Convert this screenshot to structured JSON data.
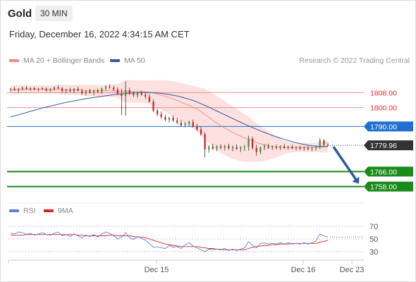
{
  "header": {
    "symbol": "Gold",
    "timeframe": "30 MIN"
  },
  "timestamp": "Friday, December 16, 2022 4:34:15 AM CET",
  "legend": {
    "ma20": {
      "label": "MA 20 + Bollinger Bands",
      "color": "#f08a8a"
    },
    "ma50": {
      "label": "MA 50",
      "color": "#2f5a9a"
    },
    "credit": "Research © 2022 Trading Central"
  },
  "indicator_legend": {
    "rsi": {
      "label": "RSI",
      "color": "#5b7fd6"
    },
    "rsi_ma": {
      "label": "9MA",
      "color": "#e02020"
    }
  },
  "chart_data": {
    "type": "candlestick",
    "y_range": [
      1750,
      1822
    ],
    "price_lines": [
      {
        "value": 1808.0,
        "label": "1808.00",
        "style": "resistance",
        "color": "#f28b8b"
      },
      {
        "value": 1800.0,
        "label": "1800.00",
        "style": "resistance",
        "color": "#f28b8b"
      },
      {
        "value": 1790.0,
        "label": "1790.00",
        "style": "pivot",
        "color": "#1f6fd0"
      },
      {
        "value": 1766.0,
        "label": "1766.00",
        "style": "support",
        "color": "#1a8a1a"
      },
      {
        "value": 1758.0,
        "label": "1758.00",
        "style": "support",
        "color": "#1a8a1a"
      }
    ],
    "last_price": {
      "value": 1779.96,
      "label": "1779.96"
    },
    "forecast": {
      "direction": "down",
      "target": 1758.0
    },
    "x_labels": [
      "Dec 15",
      "Dec 16",
      "Dec 23"
    ],
    "series": [
      {
        "name": "MA 20 + Bollinger Bands",
        "color": "#f08a8a"
      },
      {
        "name": "MA 50",
        "color": "#2f5a9a"
      }
    ],
    "candles": [
      [
        1809.5,
        1810.5,
        1808.5,
        1810.0
      ],
      [
        1810.0,
        1811.0,
        1809.0,
        1809.2
      ],
      [
        1809.2,
        1810.4,
        1808.0,
        1810.0
      ],
      [
        1810.0,
        1811.2,
        1809.0,
        1810.6
      ],
      [
        1810.6,
        1811.4,
        1809.6,
        1809.8
      ],
      [
        1809.8,
        1810.8,
        1808.8,
        1810.4
      ],
      [
        1810.4,
        1811.0,
        1809.2,
        1809.6
      ],
      [
        1809.6,
        1810.6,
        1808.6,
        1810.2
      ],
      [
        1810.2,
        1811.0,
        1809.4,
        1810.0
      ],
      [
        1810.0,
        1810.8,
        1808.6,
        1809.0
      ],
      [
        1809.0,
        1810.4,
        1808.4,
        1809.8
      ],
      [
        1809.8,
        1811.2,
        1809.0,
        1810.8
      ],
      [
        1810.8,
        1812.0,
        1809.8,
        1810.2
      ],
      [
        1810.2,
        1811.0,
        1808.0,
        1808.8
      ],
      [
        1808.8,
        1810.0,
        1807.6,
        1809.4
      ],
      [
        1809.4,
        1810.6,
        1808.2,
        1808.6
      ],
      [
        1808.6,
        1810.4,
        1807.8,
        1810.0
      ],
      [
        1810.0,
        1811.2,
        1808.6,
        1809.0
      ],
      [
        1809.0,
        1810.0,
        1806.8,
        1807.6
      ],
      [
        1807.6,
        1809.2,
        1806.4,
        1808.8
      ],
      [
        1808.8,
        1810.0,
        1807.4,
        1808.0
      ],
      [
        1808.0,
        1809.6,
        1806.6,
        1809.0
      ],
      [
        1809.0,
        1810.2,
        1807.8,
        1808.2
      ],
      [
        1808.2,
        1810.6,
        1807.4,
        1810.2
      ],
      [
        1810.2,
        1811.8,
        1809.2,
        1811.0
      ],
      [
        1811.0,
        1812.4,
        1810.0,
        1810.6
      ],
      [
        1810.6,
        1811.6,
        1808.8,
        1809.6
      ],
      [
        1809.6,
        1810.8,
        1806.8,
        1807.4
      ],
      [
        1807.4,
        1810.0,
        1796.0,
        1806.2
      ],
      [
        1806.2,
        1814.0,
        1795.6,
        1809.2
      ],
      [
        1809.2,
        1810.6,
        1806.6,
        1807.4
      ],
      [
        1807.4,
        1808.6,
        1805.6,
        1806.6
      ],
      [
        1806.6,
        1808.4,
        1805.2,
        1807.8
      ],
      [
        1807.8,
        1809.0,
        1806.2,
        1806.8
      ],
      [
        1806.8,
        1808.0,
        1804.8,
        1805.8
      ],
      [
        1805.8,
        1807.2,
        1802.6,
        1803.2
      ],
      [
        1803.2,
        1804.4,
        1797.6,
        1798.4
      ],
      [
        1798.4,
        1799.6,
        1795.4,
        1796.6
      ],
      [
        1796.6,
        1798.0,
        1794.0,
        1795.0
      ],
      [
        1795.0,
        1796.4,
        1792.8,
        1793.6
      ],
      [
        1793.6,
        1795.2,
        1792.2,
        1794.6
      ],
      [
        1794.6,
        1795.8,
        1792.4,
        1793.2
      ],
      [
        1793.2,
        1794.6,
        1791.2,
        1792.0
      ],
      [
        1792.0,
        1793.4,
        1789.8,
        1790.6
      ],
      [
        1790.6,
        1792.2,
        1789.6,
        1791.4
      ],
      [
        1791.4,
        1793.0,
        1790.2,
        1792.4
      ],
      [
        1792.4,
        1793.6,
        1789.4,
        1790.2
      ],
      [
        1790.2,
        1791.4,
        1787.6,
        1788.4
      ],
      [
        1788.4,
        1789.8,
        1785.0,
        1785.8
      ],
      [
        1785.8,
        1787.0,
        1773.4,
        1777.8
      ],
      [
        1777.8,
        1780.0,
        1776.0,
        1779.2
      ],
      [
        1779.2,
        1780.8,
        1777.4,
        1778.2
      ],
      [
        1778.2,
        1780.0,
        1776.8,
        1779.4
      ],
      [
        1779.4,
        1780.6,
        1777.8,
        1778.8
      ],
      [
        1778.8,
        1780.2,
        1777.2,
        1779.6
      ],
      [
        1779.6,
        1780.8,
        1777.6,
        1778.4
      ],
      [
        1778.4,
        1779.8,
        1776.8,
        1779.0
      ],
      [
        1779.0,
        1780.4,
        1777.6,
        1778.0
      ],
      [
        1778.0,
        1779.6,
        1776.4,
        1778.8
      ],
      [
        1778.8,
        1780.2,
        1777.0,
        1779.2
      ],
      [
        1779.2,
        1785.0,
        1777.2,
        1783.4
      ],
      [
        1783.4,
        1784.6,
        1777.6,
        1778.6
      ],
      [
        1778.6,
        1780.2,
        1774.4,
        1776.4
      ],
      [
        1776.4,
        1779.4,
        1775.2,
        1778.8
      ],
      [
        1778.8,
        1780.6,
        1777.4,
        1779.4
      ],
      [
        1779.4,
        1780.8,
        1778.0,
        1778.6
      ],
      [
        1778.6,
        1779.8,
        1777.6,
        1779.0
      ],
      [
        1779.0,
        1780.4,
        1777.8,
        1778.8
      ],
      [
        1778.8,
        1780.0,
        1777.4,
        1779.4
      ],
      [
        1779.4,
        1780.6,
        1778.0,
        1778.6
      ],
      [
        1778.6,
        1779.8,
        1777.6,
        1779.2
      ],
      [
        1779.2,
        1780.2,
        1777.8,
        1778.4
      ],
      [
        1778.4,
        1779.6,
        1777.2,
        1778.8
      ],
      [
        1778.8,
        1779.8,
        1777.4,
        1778.2
      ],
      [
        1778.2,
        1779.4,
        1777.0,
        1778.6
      ],
      [
        1778.6,
        1779.6,
        1777.2,
        1778.0
      ],
      [
        1778.0,
        1779.2,
        1776.8,
        1778.4
      ],
      [
        1778.4,
        1779.8,
        1777.2,
        1779.0
      ],
      [
        1779.0,
        1783.8,
        1778.0,
        1782.6
      ],
      [
        1782.6,
        1783.2,
        1779.2,
        1780.2
      ],
      [
        1780.2,
        1781.4,
        1779.0,
        1779.96
      ]
    ],
    "ma20": [
      1809.6,
      1809.7,
      1809.7,
      1809.8,
      1809.8,
      1809.8,
      1809.8,
      1809.8,
      1809.8,
      1809.7,
      1809.7,
      1809.7,
      1809.7,
      1809.6,
      1809.6,
      1809.5,
      1809.5,
      1809.5,
      1809.3,
      1809.2,
      1809.1,
      1809.0,
      1809.0,
      1809.0,
      1809.0,
      1809.0,
      1809.0,
      1808.9,
      1808.8,
      1808.8,
      1808.7,
      1808.6,
      1808.6,
      1808.5,
      1808.4,
      1808.2,
      1807.8,
      1807.3,
      1806.7,
      1806.0,
      1805.3,
      1804.6,
      1803.8,
      1802.9,
      1802.0,
      1801.2,
      1800.2,
      1799.2,
      1798.0,
      1796.3,
      1794.8,
      1793.2,
      1791.8,
      1790.4,
      1789.1,
      1787.9,
      1786.8,
      1785.8,
      1784.8,
      1783.9,
      1783.2,
      1782.4,
      1781.4,
      1780.8,
      1780.2,
      1779.8,
      1779.4,
      1779.1,
      1778.9,
      1778.8,
      1778.8,
      1778.8,
      1778.8,
      1778.8,
      1778.8,
      1778.8,
      1778.8,
      1778.8,
      1779.0,
      1779.1,
      1779.2
    ],
    "bb_width": [
      2.2,
      2.2,
      2.2,
      2.2,
      2.2,
      2.2,
      2.2,
      2.2,
      2.2,
      2.2,
      2.2,
      2.2,
      2.4,
      2.6,
      2.6,
      2.6,
      2.6,
      2.6,
      2.8,
      3.0,
      3.0,
      3.0,
      3.0,
      3.0,
      3.2,
      3.4,
      3.4,
      3.6,
      5.0,
      6.0,
      6.0,
      6.0,
      6.0,
      6.0,
      6.0,
      6.2,
      6.8,
      7.4,
      8.0,
      8.6,
      9.0,
      9.4,
      9.8,
      10.2,
      10.6,
      11.0,
      11.4,
      11.8,
      12.4,
      13.6,
      14.0,
      14.2,
      14.4,
      14.4,
      14.4,
      14.2,
      14.0,
      13.6,
      13.2,
      12.6,
      12.0,
      11.2,
      10.2,
      9.4,
      8.6,
      7.6,
      6.6,
      5.6,
      4.6,
      3.6,
      3.0,
      2.6,
      2.4,
      2.4,
      2.4,
      2.4,
      2.4,
      2.4,
      2.8,
      3.0,
      3.0
    ],
    "ma50": [
      1795.0,
      1795.6,
      1796.2,
      1796.8,
      1797.4,
      1798.0,
      1798.6,
      1799.2,
      1799.8,
      1800.3,
      1800.8,
      1801.3,
      1801.8,
      1802.3,
      1802.8,
      1803.2,
      1803.6,
      1804.0,
      1804.4,
      1804.8,
      1805.1,
      1805.4,
      1805.7,
      1806.0,
      1806.3,
      1806.6,
      1806.9,
      1807.1,
      1807.3,
      1807.5,
      1807.7,
      1807.8,
      1807.9,
      1808.0,
      1808.0,
      1808.0,
      1807.9,
      1807.8,
      1807.6,
      1807.3,
      1807.0,
      1806.6,
      1806.2,
      1805.7,
      1805.1,
      1804.5,
      1803.8,
      1803.0,
      1802.1,
      1801.2,
      1800.2,
      1799.2,
      1798.2,
      1797.2,
      1796.2,
      1795.2,
      1794.2,
      1793.2,
      1792.2,
      1791.2,
      1790.3,
      1789.4,
      1788.5,
      1787.6,
      1786.8,
      1786.0,
      1785.2,
      1784.5,
      1783.8,
      1783.1,
      1782.5,
      1781.9,
      1781.4,
      1780.9,
      1780.4,
      1780.0,
      1779.7,
      1779.5,
      1779.4,
      1779.3,
      1779.3
    ],
    "rsi": {
      "levels": [
        70,
        50,
        30
      ],
      "y_range": [
        20,
        80
      ],
      "values": [
        59,
        58,
        61,
        60,
        57,
        59,
        56,
        58,
        60,
        57,
        56,
        59,
        61,
        55,
        57,
        54,
        58,
        55,
        52,
        56,
        54,
        57,
        53,
        58,
        61,
        59,
        55,
        50,
        53,
        60,
        52,
        49,
        54,
        51,
        48,
        43,
        37,
        38,
        36,
        35,
        40,
        37,
        38,
        35,
        41,
        44,
        39,
        36,
        33,
        30,
        34,
        33,
        34,
        33,
        35,
        32,
        34,
        32,
        34,
        36,
        46,
        40,
        36,
        43,
        44,
        42,
        43,
        42,
        44,
        42,
        44,
        42,
        43,
        42,
        44,
        42,
        44,
        47,
        58,
        55,
        53
      ],
      "ma_values": [
        56,
        56,
        56,
        56,
        57,
        57,
        57,
        57,
        57,
        57,
        57,
        57,
        57,
        57,
        57,
        57,
        57,
        56,
        56,
        55,
        55,
        55,
        55,
        55,
        55,
        56,
        56,
        55,
        55,
        55,
        55,
        54,
        53,
        53,
        52,
        50,
        48,
        46,
        44,
        42,
        41,
        40,
        39,
        38,
        38,
        38,
        38,
        38,
        37,
        36,
        35,
        35,
        34,
        34,
        33,
        33,
        33,
        33,
        33,
        33,
        35,
        37,
        38,
        39,
        40,
        40,
        41,
        41,
        42,
        42,
        42,
        43,
        43,
        43,
        43,
        43,
        43,
        43,
        45,
        46,
        48
      ]
    }
  }
}
